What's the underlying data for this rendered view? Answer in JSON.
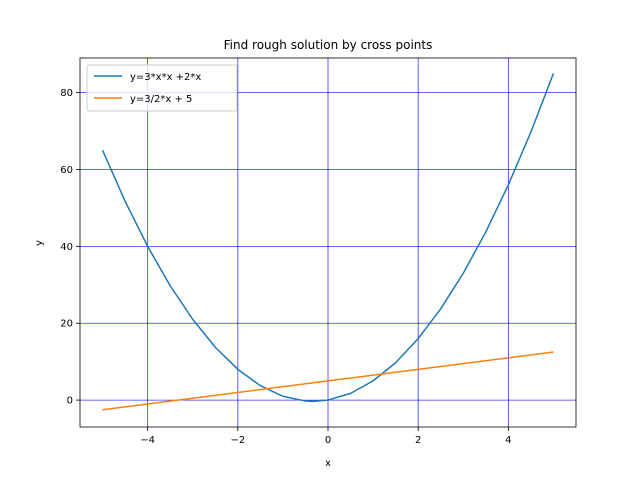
{
  "chart_data": {
    "type": "line",
    "title": "Find rough solution by cross points",
    "xlabel": "x",
    "ylabel": "y",
    "xlim": [
      -5.5,
      5.5
    ],
    "ylim": [
      -7,
      89
    ],
    "xticks": [
      -4,
      -2,
      0,
      2,
      4
    ],
    "xtick_labels": [
      "−4",
      "−2",
      "0",
      "2",
      "4"
    ],
    "yticks": [
      0,
      20,
      40,
      60,
      80
    ],
    "ytick_labels": [
      "0",
      "20",
      "40",
      "60",
      "80"
    ],
    "grid": true,
    "grid_color": "#0000ff",
    "legend_position": "upper-left",
    "series": [
      {
        "name": "y=3*x*x +2*x",
        "color": "#1f77b4",
        "x": [
          -5,
          -4.5,
          -4,
          -3.5,
          -3,
          -2.5,
          -2,
          -1.5,
          -1,
          -0.5,
          -0.333,
          0,
          0.5,
          1,
          1.5,
          2,
          2.5,
          3,
          3.5,
          4,
          4.5,
          5
        ],
        "y": [
          65,
          51.75,
          40,
          29.75,
          21,
          13.75,
          8,
          3.75,
          1,
          -0.25,
          -0.333,
          0,
          1.75,
          5,
          9.75,
          16,
          23.75,
          33,
          43.75,
          56,
          69.75,
          85
        ]
      },
      {
        "name": "y=3/2*x + 5",
        "color": "#ff7f0e",
        "x": [
          -5,
          5
        ],
        "y": [
          -2.5,
          12.5
        ]
      }
    ]
  }
}
